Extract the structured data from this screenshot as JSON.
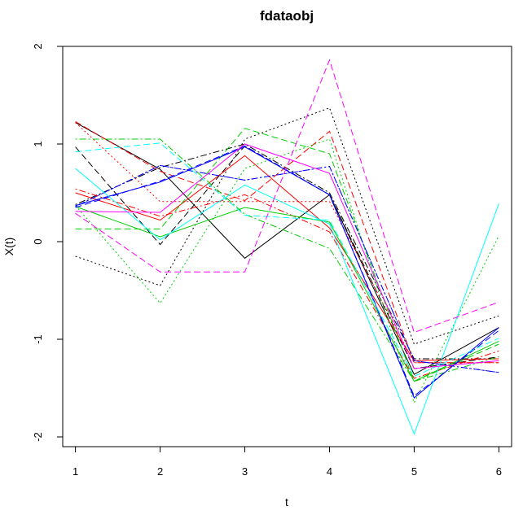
{
  "chart_data": {
    "type": "line",
    "title": "fdataobj",
    "xlabel": "t",
    "ylabel": "X(t)",
    "xlim": [
      0.85,
      6.15
    ],
    "ylim": [
      -2.1,
      2.0
    ],
    "x": [
      1,
      2,
      3,
      4,
      5,
      6
    ],
    "x_ticks": [
      1,
      2,
      3,
      4,
      5,
      6
    ],
    "y_ticks": [
      -2,
      -1,
      0,
      1,
      2
    ],
    "grid": false,
    "legend": "none",
    "series": [
      {
        "values": [
          1.22,
          0.74,
          -0.17,
          0.48,
          -1.36,
          -0.88
        ],
        "color": "#000000",
        "dash": "solid"
      },
      {
        "values": [
          0.97,
          -0.03,
          0.98,
          0.48,
          -1.3,
          -1.18
        ],
        "color": "#000000",
        "dash": "dashed"
      },
      {
        "values": [
          -0.15,
          -0.45,
          1.05,
          1.37,
          -1.05,
          -0.76
        ],
        "color": "#000000",
        "dash": "dotted"
      },
      {
        "values": [
          0.38,
          0.76,
          1.0,
          0.5,
          -1.2,
          -1.2
        ],
        "color": "#000000",
        "dash": "dotdash"
      },
      {
        "values": [
          0.5,
          0.22,
          0.88,
          0.14,
          -1.22,
          -1.2
        ],
        "color": "#ff0000",
        "dash": "solid"
      },
      {
        "values": [
          1.23,
          0.72,
          0.42,
          1.13,
          -1.24,
          -1.24
        ],
        "color": "#ff0000",
        "dash": "dashed"
      },
      {
        "values": [
          1.22,
          0.41,
          0.41,
          0.41,
          -1.24,
          -1.24
        ],
        "color": "#ff0000",
        "dash": "dotted"
      },
      {
        "values": [
          0.54,
          0.26,
          0.48,
          0.1,
          -1.4,
          -1.12
        ],
        "color": "#ff0000",
        "dash": "dotdash"
      },
      {
        "values": [
          0.36,
          0.05,
          0.35,
          0.2,
          -1.43,
          -1.02
        ],
        "color": "#00cd00",
        "dash": "solid"
      },
      {
        "values": [
          0.13,
          0.13,
          1.16,
          0.9,
          -1.43,
          -1.05
        ],
        "color": "#00cd00",
        "dash": "dashed"
      },
      {
        "values": [
          0.37,
          -0.63,
          0.75,
          1.05,
          -1.65,
          0.06
        ],
        "color": "#00cd00",
        "dash": "dotted"
      },
      {
        "values": [
          1.05,
          1.05,
          0.28,
          -0.07,
          -1.43,
          -1.18
        ],
        "color": "#00cd00",
        "dash": "dotdash"
      },
      {
        "values": [
          0.37,
          0.61,
          0.97,
          0.48,
          -1.6,
          -0.88
        ],
        "color": "#0000ff",
        "dash": "solid"
      },
      {
        "values": [
          0.35,
          0.62,
          0.98,
          0.48,
          -1.58,
          -0.91
        ],
        "color": "#0000ff",
        "dash": "dashed"
      },
      {
        "values": [
          0.36,
          0.78,
          0.63,
          0.77,
          -1.22,
          -1.34
        ],
        "color": "#0000ff",
        "dash": "dotted"
      },
      {
        "values": [
          0.36,
          0.78,
          0.63,
          0.77,
          -1.22,
          -1.34
        ],
        "color": "#0000ff",
        "dash": "dotdash"
      },
      {
        "values": [
          0.75,
          0.02,
          0.58,
          0.18,
          -1.97,
          0.39
        ],
        "color": "#00ffff",
        "dash": "solid"
      },
      {
        "values": [
          0.92,
          1.01,
          0.27,
          0.22,
          -1.38,
          -0.99
        ],
        "color": "#00ffff",
        "dash": "dashed"
      },
      {
        "values": [
          0.31,
          0.3,
          1.0,
          0.7,
          -1.3,
          -1.22
        ],
        "color": "#ff00ff",
        "dash": "solid"
      },
      {
        "values": [
          0.29,
          -0.31,
          -0.31,
          1.86,
          -0.93,
          -0.62
        ],
        "color": "#ff00ff",
        "dash": "dashed"
      }
    ]
  }
}
